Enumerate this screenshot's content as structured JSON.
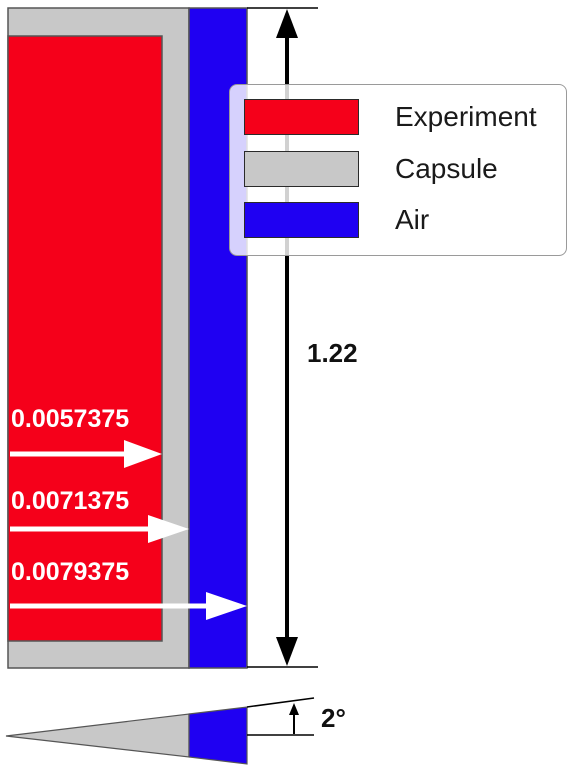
{
  "colors": {
    "experiment": "#f5001a",
    "capsule": "#c8c8c8",
    "air": "#1f00f2",
    "outline": "#555555",
    "dimension": "#000000"
  },
  "legend": {
    "items": [
      {
        "label": "Experiment",
        "color": "#f5001a"
      },
      {
        "label": "Capsule",
        "color": "#c8c8c8"
      },
      {
        "label": "Air",
        "color": "#1f00f2"
      }
    ]
  },
  "dimensions": {
    "height_label": "1.22",
    "radius_labels": [
      "0.0057375",
      "0.0071375",
      "0.0079375"
    ],
    "angle_label": "2°"
  }
}
